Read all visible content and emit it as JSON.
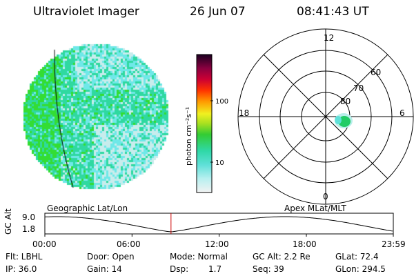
{
  "header": {
    "title": "Ultraviolet Imager",
    "date": "26 Jun 07",
    "time": "08:41:43 UT"
  },
  "colorbar": {
    "unit_label": "photon cm⁻²s⁻¹",
    "ticks": [
      "100",
      "10"
    ],
    "scale": "log"
  },
  "polar_plot": {
    "mlt_labels": [
      "12",
      "18",
      "6",
      "0"
    ],
    "mlat_labels": [
      "60",
      "70",
      "80"
    ],
    "spot_color": "#22cc66"
  },
  "imager_disk": {
    "dominant_colors": [
      "#33dd33",
      "#2fd9a0",
      "#6fe8e8",
      "#c8ecec"
    ]
  },
  "timeline": {
    "left_label": "Geographic Lat/Lon",
    "right_label": "Apex MLat/MLT",
    "y_axis_label": "GC Alt",
    "y_ticks": [
      "9.0",
      "1.8"
    ],
    "x_ticks": [
      "00:00",
      "06:00",
      "12:00",
      "18:00",
      "23:59"
    ],
    "marker_time": "08:41",
    "marker_color": "#cc0000"
  },
  "status": {
    "flt": "Flt: LBHL",
    "ip": "IP: 36.0",
    "door": "Door: Open",
    "gain": "Gain: 14",
    "mode": "Mode: Normal",
    "dsp_label": "Dsp:",
    "dsp_value": "1.7",
    "gc_alt": "GC Alt: 2.2 Re",
    "seq": "Seq: 39",
    "glat": "GLat:  72.4",
    "glon": "GLon: 294.5"
  }
}
